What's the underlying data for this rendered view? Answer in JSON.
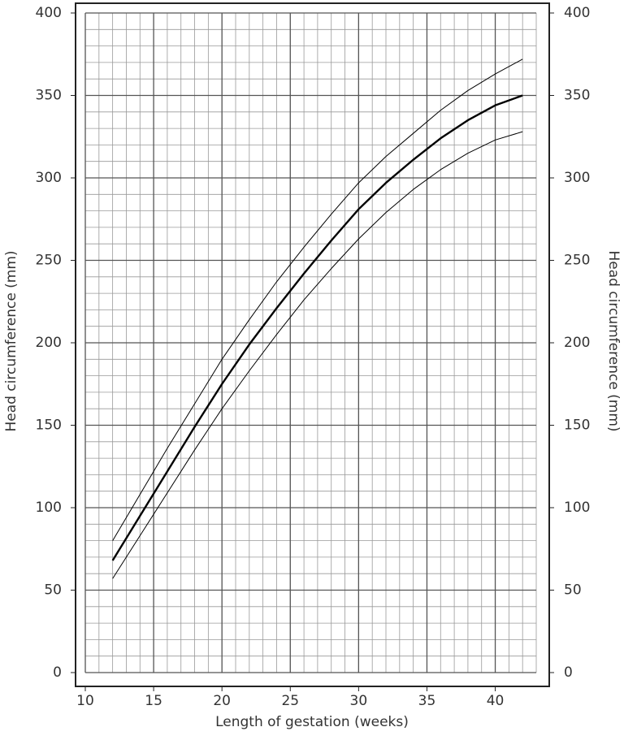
{
  "chart_data": {
    "type": "line",
    "x_label": "Length of gestation (weeks)",
    "y_label": "Head circumference (mm)",
    "y2_label": "Head circumference (mm)",
    "x": [
      12,
      14,
      16,
      18,
      20,
      22,
      24,
      26,
      28,
      30,
      32,
      34,
      36,
      38,
      40,
      42
    ],
    "series": [
      {
        "color": "#000000",
        "line_width": 1,
        "values": [
          80,
          108,
          136,
          163,
          190,
          214,
          237,
          258,
          278,
          297,
          313,
          327,
          341,
          353,
          363,
          372
        ]
      },
      {
        "color": "#000000",
        "line_width": 2.4,
        "values": [
          68,
          95,
          122,
          149,
          175,
          199,
          221,
          242,
          262,
          281,
          297,
          311,
          324,
          335,
          344,
          350
        ]
      },
      {
        "color": "#000000",
        "line_width": 1,
        "values": [
          57,
          83,
          109,
          135,
          160,
          183,
          205,
          226,
          245,
          263,
          279,
          293,
          305,
          315,
          323,
          328
        ]
      }
    ],
    "xlim": [
      10,
      43
    ],
    "xticks": [
      10,
      15,
      20,
      25,
      30,
      35,
      40
    ],
    "ylim": [
      0,
      400
    ],
    "yticks": [
      0,
      50,
      100,
      150,
      200,
      250,
      300,
      350,
      400
    ],
    "y2lim": [
      0,
      400
    ],
    "y2ticks": [
      0,
      50,
      100,
      150,
      200,
      250,
      300,
      350,
      400
    ],
    "grid": true,
    "minor_grid": {
      "x": 1,
      "y": 10
    }
  }
}
